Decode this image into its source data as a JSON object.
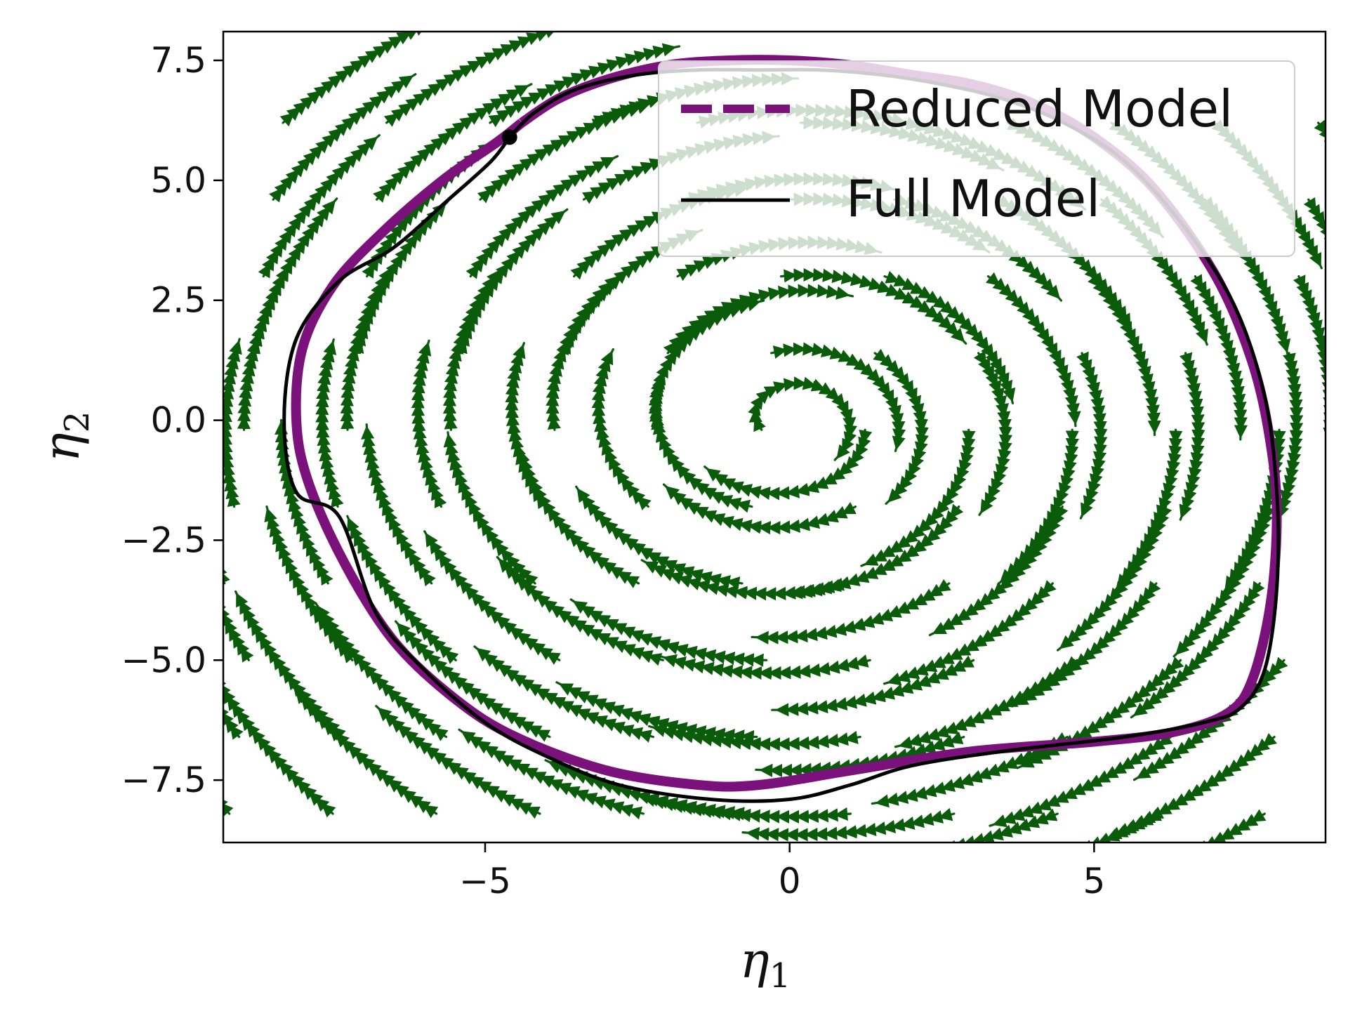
{
  "chart_data": {
    "type": "streamplot",
    "title": "",
    "xlabel": "η",
    "xlabel_sub": "1",
    "ylabel": "η",
    "ylabel_sub": "2",
    "xlim": [
      -9.3,
      8.8
    ],
    "ylim": [
      -8.8,
      8.1
    ],
    "xticks": [
      -5,
      0,
      5
    ],
    "xtick_labels": [
      "−5",
      "0",
      "5"
    ],
    "yticks": [
      -7.5,
      -5.0,
      -2.5,
      0.0,
      2.5,
      5.0,
      7.5
    ],
    "ytick_labels": [
      "−7.5",
      "−5.0",
      "−2.5",
      "0.0",
      "2.5",
      "5.0",
      "7.5"
    ],
    "grid": false,
    "legend_position": "top-right",
    "colors": {
      "streamlines": "#0a5c0a",
      "reduced_model": "#7b127b",
      "full_model": "#000000"
    },
    "series": [
      {
        "name": "Reduced Model",
        "style": "dashed",
        "points": [
          [
            -4.4,
            6.2
          ],
          [
            -3.8,
            6.7
          ],
          [
            -3.0,
            7.1
          ],
          [
            -2.0,
            7.4
          ],
          [
            -1.0,
            7.5
          ],
          [
            0.0,
            7.5
          ],
          [
            1.0,
            7.4
          ],
          [
            2.0,
            7.2
          ],
          [
            3.0,
            7.0
          ],
          [
            4.0,
            6.6
          ],
          [
            5.0,
            5.9
          ],
          [
            6.0,
            4.8
          ],
          [
            7.0,
            3.0
          ],
          [
            7.6,
            1.2
          ],
          [
            7.9,
            -0.5
          ],
          [
            8.0,
            -2.0
          ],
          [
            7.9,
            -3.8
          ],
          [
            7.6,
            -5.4
          ],
          [
            7.2,
            -6.1
          ],
          [
            6.3,
            -6.5
          ],
          [
            5.0,
            -6.7
          ],
          [
            3.0,
            -6.9
          ],
          [
            1.0,
            -7.3
          ],
          [
            -0.5,
            -7.6
          ],
          [
            -1.5,
            -7.6
          ],
          [
            -3.0,
            -7.3
          ],
          [
            -4.5,
            -6.6
          ],
          [
            -5.5,
            -5.8
          ],
          [
            -6.5,
            -4.6
          ],
          [
            -7.3,
            -3.0
          ],
          [
            -7.9,
            -1.3
          ],
          [
            -8.1,
            0.0
          ],
          [
            -8.0,
            1.5
          ],
          [
            -7.5,
            2.8
          ],
          [
            -6.7,
            3.9
          ],
          [
            -5.7,
            5.0
          ],
          [
            -4.8,
            5.8
          ],
          [
            -4.4,
            6.2
          ]
        ]
      },
      {
        "name": "Full Model",
        "style": "solid",
        "start_point": [
          -4.6,
          5.9
        ],
        "points": [
          [
            -4.6,
            5.9
          ],
          [
            -4.2,
            6.4
          ],
          [
            -3.5,
            6.9
          ],
          [
            -2.5,
            7.2
          ],
          [
            -1.5,
            7.3
          ],
          [
            -0.5,
            7.3
          ],
          [
            0.5,
            7.3
          ],
          [
            1.5,
            7.2
          ],
          [
            2.5,
            7.0
          ],
          [
            3.5,
            6.7
          ],
          [
            4.5,
            6.2
          ],
          [
            5.5,
            5.4
          ],
          [
            6.5,
            4.0
          ],
          [
            7.3,
            2.4
          ],
          [
            7.8,
            0.5
          ],
          [
            8.0,
            -1.5
          ],
          [
            8.0,
            -3.5
          ],
          [
            7.8,
            -5.2
          ],
          [
            7.4,
            -6.0
          ],
          [
            6.8,
            -6.3
          ],
          [
            5.5,
            -6.6
          ],
          [
            3.5,
            -6.9
          ],
          [
            2.0,
            -7.2
          ],
          [
            1.0,
            -7.6
          ],
          [
            0.0,
            -7.9
          ],
          [
            -1.3,
            -7.9
          ],
          [
            -2.8,
            -7.6
          ],
          [
            -4.0,
            -7.0
          ],
          [
            -5.0,
            -6.3
          ],
          [
            -6.0,
            -5.2
          ],
          [
            -6.8,
            -4.0
          ],
          [
            -7.4,
            -2.0
          ],
          [
            -8.1,
            -1.5
          ],
          [
            -8.3,
            0.0
          ],
          [
            -8.1,
            1.7
          ],
          [
            -7.4,
            2.9
          ],
          [
            -6.5,
            3.6
          ],
          [
            -5.6,
            4.6
          ],
          [
            -4.9,
            5.4
          ],
          [
            -4.6,
            5.9
          ]
        ]
      }
    ]
  }
}
